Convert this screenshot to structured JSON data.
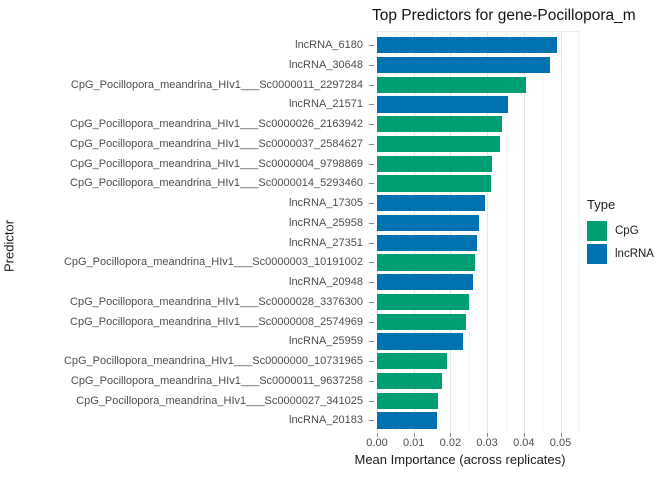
{
  "chart_data": {
    "type": "bar",
    "orientation": "horizontal",
    "title": "Top Predictors for gene-Pocillopora_m",
    "xlabel": "Mean Importance (across replicates)",
    "ylabel": "Predictor",
    "xlim": [
      0,
      0.055
    ],
    "x_tick_labels": [
      "0.00",
      "0.01",
      "0.02",
      "0.03",
      "0.04",
      "0.05"
    ],
    "x_tick_values": [
      0,
      0.01,
      0.02,
      0.03,
      0.04,
      0.05
    ],
    "grid": true,
    "legend": {
      "title": "Type",
      "position": "right",
      "entries": [
        {
          "label": "CpG",
          "color": "#009E73"
        },
        {
          "label": "lncRNA",
          "color": "#0072B2"
        }
      ]
    },
    "bars": [
      {
        "label": "lncRNA_6180",
        "type": "lncRNA",
        "value": 0.049
      },
      {
        "label": "lncRNA_30648",
        "type": "lncRNA",
        "value": 0.047
      },
      {
        "label": "CpG_Pocillopora_meandrina_HIv1___Sc0000011_2297284",
        "type": "CpG",
        "value": 0.0407
      },
      {
        "label": "lncRNA_21571",
        "type": "lncRNA",
        "value": 0.0357
      },
      {
        "label": "CpG_Pocillopora_meandrina_HIv1___Sc0000026_2163942",
        "type": "CpG",
        "value": 0.034
      },
      {
        "label": "CpG_Pocillopora_meandrina_HIv1___Sc0000037_2584627",
        "type": "CpG",
        "value": 0.0336
      },
      {
        "label": "CpG_Pocillopora_meandrina_HIv1___Sc0000004_9798869",
        "type": "CpG",
        "value": 0.0313
      },
      {
        "label": "CpG_Pocillopora_meandrina_HIv1___Sc0000014_5293460",
        "type": "CpG",
        "value": 0.031
      },
      {
        "label": "lncRNA_17305",
        "type": "lncRNA",
        "value": 0.0293
      },
      {
        "label": "lncRNA_25958",
        "type": "lncRNA",
        "value": 0.0277
      },
      {
        "label": "lncRNA_27351",
        "type": "lncRNA",
        "value": 0.0272
      },
      {
        "label": "CpG_Pocillopora_meandrina_HIv1___Sc0000003_10191002",
        "type": "CpG",
        "value": 0.0266
      },
      {
        "label": "lncRNA_20948",
        "type": "lncRNA",
        "value": 0.0262
      },
      {
        "label": "CpG_Pocillopora_meandrina_HIv1___Sc0000028_3376300",
        "type": "CpG",
        "value": 0.0251
      },
      {
        "label": "CpG_Pocillopora_meandrina_HIv1___Sc0000008_2574969",
        "type": "CpG",
        "value": 0.0243
      },
      {
        "label": "lncRNA_25959",
        "type": "lncRNA",
        "value": 0.0233
      },
      {
        "label": "CpG_Pocillopora_meandrina_HIv1___Sc0000000_10731965",
        "type": "CpG",
        "value": 0.0191
      },
      {
        "label": "CpG_Pocillopora_meandrina_HIv1___Sc0000011_9637258",
        "type": "CpG",
        "value": 0.0178
      },
      {
        "label": "CpG_Pocillopora_meandrina_HIv1___Sc0000027_341025",
        "type": "CpG",
        "value": 0.0165
      },
      {
        "label": "lncRNA_20183",
        "type": "lncRNA",
        "value": 0.0163
      }
    ]
  }
}
